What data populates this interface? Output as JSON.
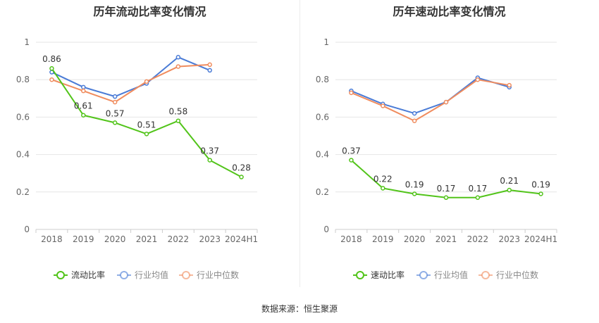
{
  "footer": {
    "source": "数据来源：恒生聚源"
  },
  "chart_data": [
    {
      "type": "line",
      "title": "历年流动比率变化情况",
      "categories": [
        "2018",
        "2019",
        "2020",
        "2021",
        "2022",
        "2023",
        "2024H1"
      ],
      "ylim": [
        0,
        1
      ],
      "yticks": [
        0,
        0.2,
        0.4,
        0.6,
        0.8,
        1
      ],
      "ytick_labels": [
        "0",
        "0.2",
        "0.4",
        "0.6",
        "0.8",
        "1"
      ],
      "legend_position": "bottom",
      "grid": true,
      "series": [
        {
          "name": "流动比率",
          "color": "#52c41a",
          "values": [
            0.86,
            0.61,
            0.57,
            0.51,
            0.58,
            0.37,
            0.28
          ],
          "labels": [
            "0.86",
            "0.61",
            "0.57",
            "0.51",
            "0.58",
            "0.37",
            "0.28"
          ]
        },
        {
          "name": "行业均值",
          "color": "#4a7bd6",
          "values": [
            0.84,
            0.76,
            0.71,
            0.78,
            0.92,
            0.85,
            null
          ]
        },
        {
          "name": "行业中位数",
          "color": "#f08c5e",
          "values": [
            0.8,
            0.74,
            0.68,
            0.79,
            0.87,
            0.88,
            null
          ]
        }
      ]
    },
    {
      "type": "line",
      "title": "历年速动比率变化情况",
      "categories": [
        "2018",
        "2019",
        "2020",
        "2021",
        "2022",
        "2023",
        "2024H1"
      ],
      "ylim": [
        0,
        1
      ],
      "yticks": [
        0,
        0.2,
        0.4,
        0.6,
        0.8,
        1
      ],
      "ytick_labels": [
        "0",
        "0.2",
        "0.4",
        "0.6",
        "0.8",
        "1"
      ],
      "legend_position": "bottom",
      "grid": true,
      "series": [
        {
          "name": "速动比率",
          "color": "#52c41a",
          "values": [
            0.37,
            0.22,
            0.19,
            0.17,
            0.17,
            0.21,
            0.19
          ],
          "labels": [
            "0.37",
            "0.22",
            "0.19",
            "0.17",
            "0.17",
            "0.21",
            "0.19"
          ]
        },
        {
          "name": "行业均值",
          "color": "#4a7bd6",
          "values": [
            0.74,
            0.67,
            0.62,
            0.68,
            0.81,
            0.76,
            null
          ]
        },
        {
          "name": "行业中位数",
          "color": "#f08c5e",
          "values": [
            0.73,
            0.66,
            0.58,
            0.68,
            0.8,
            0.77,
            null
          ]
        }
      ]
    }
  ]
}
